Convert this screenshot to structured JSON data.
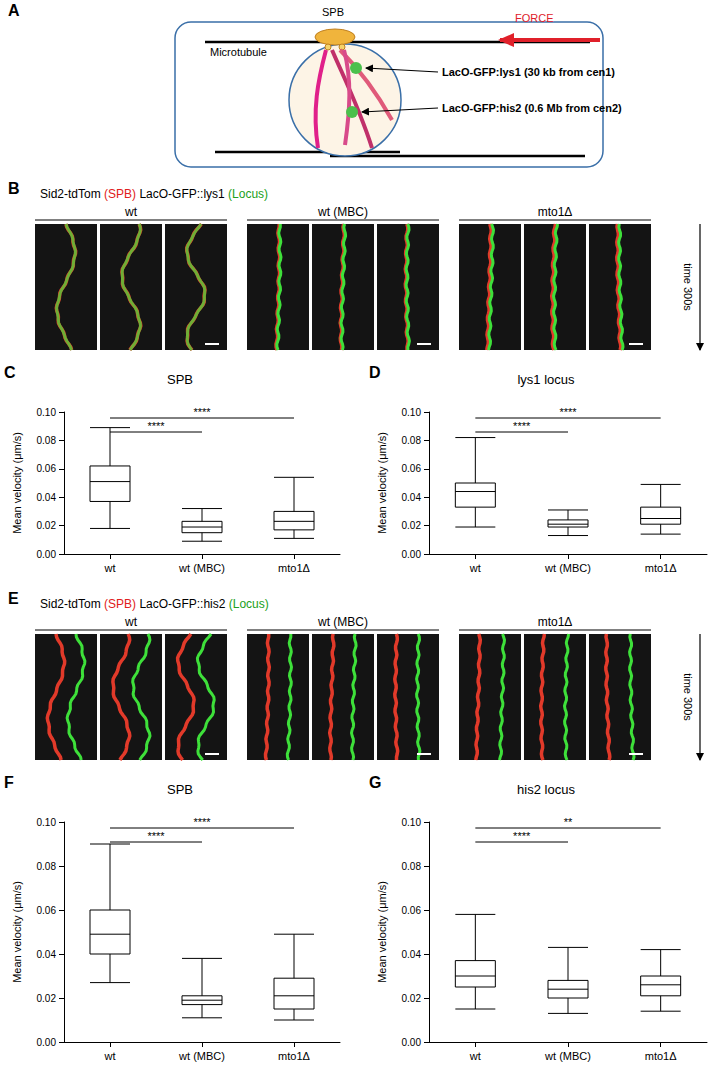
{
  "chart_data": [
    {
      "panel": "C",
      "type": "boxplot",
      "title": "SPB",
      "ylabel": "Mean velocity (μm/s)",
      "categories": [
        "wt",
        "wt (MBC)",
        "mto1Δ"
      ],
      "values": [
        [
          0.018,
          0.037,
          0.051,
          0.062,
          0.089
        ],
        [
          0.009,
          0.015,
          0.019,
          0.023,
          0.032
        ],
        [
          0.011,
          0.017,
          0.023,
          0.03,
          0.054
        ]
      ],
      "ylim": [
        0,
        0.1
      ],
      "yticks": [
        {
          "value": 0,
          "label": "0.00"
        },
        {
          "value": 0.02,
          "label": "0.02"
        },
        {
          "value": 0.04,
          "label": "0.04"
        },
        {
          "value": 0.06,
          "label": "0.06"
        },
        {
          "value": 0.08,
          "label": "0.08"
        },
        {
          "value": 0.1,
          "label": "0.10"
        }
      ],
      "grid": false,
      "annotations": [
        {
          "from": "wt",
          "to": "wt (MBC)",
          "text": "****"
        },
        {
          "from": "wt",
          "to": "mto1Δ",
          "text": "****"
        }
      ]
    },
    {
      "panel": "D",
      "type": "boxplot",
      "title": "lys1 locus",
      "ylabel": "Mean velocity (μm/s)",
      "categories": [
        "wt",
        "wt (MBC)",
        "mto1Δ"
      ],
      "values": [
        [
          0.019,
          0.033,
          0.044,
          0.05,
          0.082
        ],
        [
          0.013,
          0.019,
          0.021,
          0.024,
          0.031
        ],
        [
          0.014,
          0.021,
          0.025,
          0.033,
          0.049
        ]
      ],
      "ylim": [
        0,
        0.1
      ],
      "yticks": [
        {
          "value": 0,
          "label": "0.00"
        },
        {
          "value": 0.02,
          "label": "0.02"
        },
        {
          "value": 0.04,
          "label": "0.04"
        },
        {
          "value": 0.06,
          "label": "0.06"
        },
        {
          "value": 0.08,
          "label": "0.08"
        },
        {
          "value": 0.1,
          "label": "0.10"
        }
      ],
      "grid": false,
      "annotations": [
        {
          "from": "wt",
          "to": "wt (MBC)",
          "text": "****"
        },
        {
          "from": "wt",
          "to": "mto1Δ",
          "text": "****"
        }
      ]
    },
    {
      "panel": "F",
      "type": "boxplot",
      "title": "SPB",
      "ylabel": "Mean velocity (μm/s)",
      "categories": [
        "wt",
        "wt (MBC)",
        "mto1Δ"
      ],
      "values": [
        [
          0.027,
          0.04,
          0.049,
          0.06,
          0.09
        ],
        [
          0.011,
          0.017,
          0.019,
          0.021,
          0.038
        ],
        [
          0.01,
          0.015,
          0.021,
          0.029,
          0.049
        ]
      ],
      "ylim": [
        0,
        0.1
      ],
      "yticks": [
        {
          "value": 0,
          "label": "0.00"
        },
        {
          "value": 0.02,
          "label": "0.02"
        },
        {
          "value": 0.04,
          "label": "0.04"
        },
        {
          "value": 0.06,
          "label": "0.06"
        },
        {
          "value": 0.08,
          "label": "0.08"
        },
        {
          "value": 0.1,
          "label": "0.10"
        }
      ],
      "grid": false,
      "annotations": [
        {
          "from": "wt",
          "to": "wt (MBC)",
          "text": "****"
        },
        {
          "from": "wt",
          "to": "mto1Δ",
          "text": "****"
        }
      ]
    },
    {
      "panel": "G",
      "type": "boxplot",
      "title": "his2 locus",
      "ylabel": "Mean velocity (μm/s)",
      "categories": [
        "wt",
        "wt (MBC)",
        "mto1Δ"
      ],
      "values": [
        [
          0.015,
          0.025,
          0.03,
          0.037,
          0.058
        ],
        [
          0.013,
          0.02,
          0.024,
          0.028,
          0.043
        ],
        [
          0.014,
          0.021,
          0.026,
          0.03,
          0.042
        ]
      ],
      "ylim": [
        0,
        0.1
      ],
      "yticks": [
        {
          "value": 0,
          "label": "0.00"
        },
        {
          "value": 0.02,
          "label": "0.02"
        },
        {
          "value": 0.04,
          "label": "0.04"
        },
        {
          "value": 0.06,
          "label": "0.06"
        },
        {
          "value": 0.08,
          "label": "0.08"
        },
        {
          "value": 0.1,
          "label": "0.10"
        }
      ],
      "grid": false,
      "annotations": [
        {
          "from": "wt",
          "to": "wt (MBC)",
          "text": "****"
        },
        {
          "from": "wt",
          "to": "mto1Δ",
          "text": "**"
        }
      ]
    }
  ],
  "schematic": {
    "panel": "A",
    "spb": "SPB",
    "force": "FORCE",
    "microtubule": "Microtubule",
    "locus1": "LacO-GFP:lys1 (30 kb from cen1)",
    "locus2": "LacO-GFP:his2 (0.6 Mb from cen2)"
  },
  "kymographs": [
    {
      "panel": "B",
      "header": [
        {
          "text": "Sid2-tdTom ",
          "color": "#000000"
        },
        {
          "text": "(SPB)",
          "color": "#e02020"
        },
        {
          "text": " LacO-GFP::lys1 ",
          "color": "#000000"
        },
        {
          "text": "(Locus)",
          "color": "#20a020"
        }
      ],
      "groups": [
        "wt",
        "wt (MBC)",
        "mto1Δ"
      ],
      "time_label": "time 300s"
    },
    {
      "panel": "E",
      "header": [
        {
          "text": "Sid2-tdTom ",
          "color": "#000000"
        },
        {
          "text": "(SPB)",
          "color": "#e02020"
        },
        {
          "text": " LacO-GFP::his2 ",
          "color": "#000000"
        },
        {
          "text": "(Locus)",
          "color": "#20a020"
        }
      ],
      "groups": [
        "wt",
        "wt (MBC)",
        "mto1Δ"
      ],
      "time_label": "time 300s"
    }
  ]
}
